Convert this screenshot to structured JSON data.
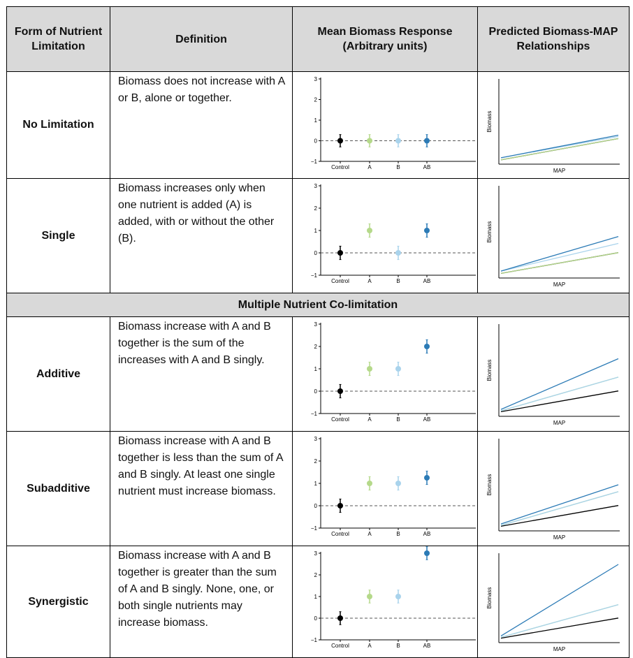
{
  "header": {
    "col1": "Form of Nutrient Limitation",
    "col2": "Definition",
    "col3": "Mean Biomass Response (Arbitrary units)",
    "col4": "Predicted Biomass-MAP Relationships"
  },
  "section_label": "Multiple Nutrient Co-limitation",
  "axis_text": {
    "response_categories": [
      "Control",
      "A",
      "B",
      "AB"
    ],
    "response_yticks": [
      "3",
      "2",
      "1",
      "0",
      "−1"
    ],
    "map_xlabel": "MAP",
    "map_ylabel": "Biomass"
  },
  "colors": {
    "control": "#000000",
    "A": "#b5d98a",
    "B": "#a9d3ec",
    "AB": "#2c7bb6"
  },
  "rows": [
    {
      "form": "No Limitation",
      "definition": "Biomass does not increase with A or B, alone or together."
    },
    {
      "form": "Single",
      "definition": "Biomass increases only when one nutrient is added (A) is added, with or without the other (B)."
    },
    {
      "form": "Additive",
      "definition": "Biomass increase with A and B together is the sum of the increases with A and B singly."
    },
    {
      "form": "Subadditive",
      "definition": "Biomass increase with A and B together is less than the sum of A and B singly. At least one single nutrient must increase biomass."
    },
    {
      "form": "Synergistic",
      "definition": "Biomass increase with A and B together is greater than the sum of A and B singly. None, one, or both single nutrients may increase biomass."
    }
  ],
  "chart_data": [
    {
      "type": "scatter",
      "categories": [
        "Control",
        "A",
        "B",
        "AB"
      ],
      "values": [
        0,
        0,
        0,
        0
      ],
      "error": [
        0.3,
        0.3,
        0.3,
        0.3
      ],
      "ylim": [
        -1,
        3
      ],
      "reference_line": 0
    },
    {
      "type": "line",
      "xlabel": "MAP",
      "ylabel": "Biomass",
      "series": [
        {
          "start": 0.1,
          "end": 0.6
        },
        {
          "start": 0.1,
          "end": 0.6
        },
        {
          "start": 0.15,
          "end": 0.65
        },
        {
          "start": 0.15,
          "end": 0.68
        }
      ]
    },
    {
      "type": "scatter",
      "categories": [
        "Control",
        "A",
        "B",
        "AB"
      ],
      "values": [
        0,
        1,
        0,
        1
      ],
      "error": [
        0.3,
        0.3,
        0.3,
        0.3
      ],
      "ylim": [
        -1,
        3
      ],
      "reference_line": 0
    },
    {
      "type": "line",
      "xlabel": "MAP",
      "ylabel": "Biomass",
      "series": [
        {
          "start": 0.1,
          "end": 0.55
        },
        {
          "start": 0.1,
          "end": 0.55
        },
        {
          "start": 0.15,
          "end": 0.75
        },
        {
          "start": 0.15,
          "end": 0.9
        }
      ]
    },
    {
      "type": "scatter",
      "categories": [
        "Control",
        "A",
        "B",
        "AB"
      ],
      "values": [
        0,
        1,
        1,
        2
      ],
      "error": [
        0.3,
        0.3,
        0.3,
        0.3
      ],
      "ylim": [
        -1,
        3
      ],
      "reference_line": 0
    },
    {
      "type": "line",
      "xlabel": "MAP",
      "ylabel": "Biomass",
      "series": [
        {
          "start": 0.1,
          "end": 0.55
        },
        {
          "start": 0.12,
          "end": 0.85
        },
        {
          "start": 0.12,
          "end": 0.85
        },
        {
          "start": 0.15,
          "end": 1.25
        }
      ]
    },
    {
      "type": "scatter",
      "categories": [
        "Control",
        "A",
        "B",
        "AB"
      ],
      "values": [
        0,
        1,
        1,
        1.25
      ],
      "error": [
        0.3,
        0.3,
        0.3,
        0.3
      ],
      "ylim": [
        -1,
        3
      ],
      "reference_line": 0
    },
    {
      "type": "line",
      "xlabel": "MAP",
      "ylabel": "Biomass",
      "series": [
        {
          "start": 0.1,
          "end": 0.55
        },
        {
          "start": 0.12,
          "end": 0.85
        },
        {
          "start": 0.12,
          "end": 0.85
        },
        {
          "start": 0.15,
          "end": 1.0
        }
      ]
    },
    {
      "type": "scatter",
      "categories": [
        "Control",
        "A",
        "B",
        "AB"
      ],
      "values": [
        0,
        1,
        1,
        3
      ],
      "error": [
        0.3,
        0.3,
        0.3,
        0.3
      ],
      "ylim": [
        -1,
        3
      ],
      "reference_line": 0
    },
    {
      "type": "line",
      "xlabel": "MAP",
      "ylabel": "Biomass",
      "series": [
        {
          "start": 0.1,
          "end": 0.55
        },
        {
          "start": 0.12,
          "end": 0.85
        },
        {
          "start": 0.12,
          "end": 0.85
        },
        {
          "start": 0.15,
          "end": 1.75
        }
      ]
    }
  ]
}
